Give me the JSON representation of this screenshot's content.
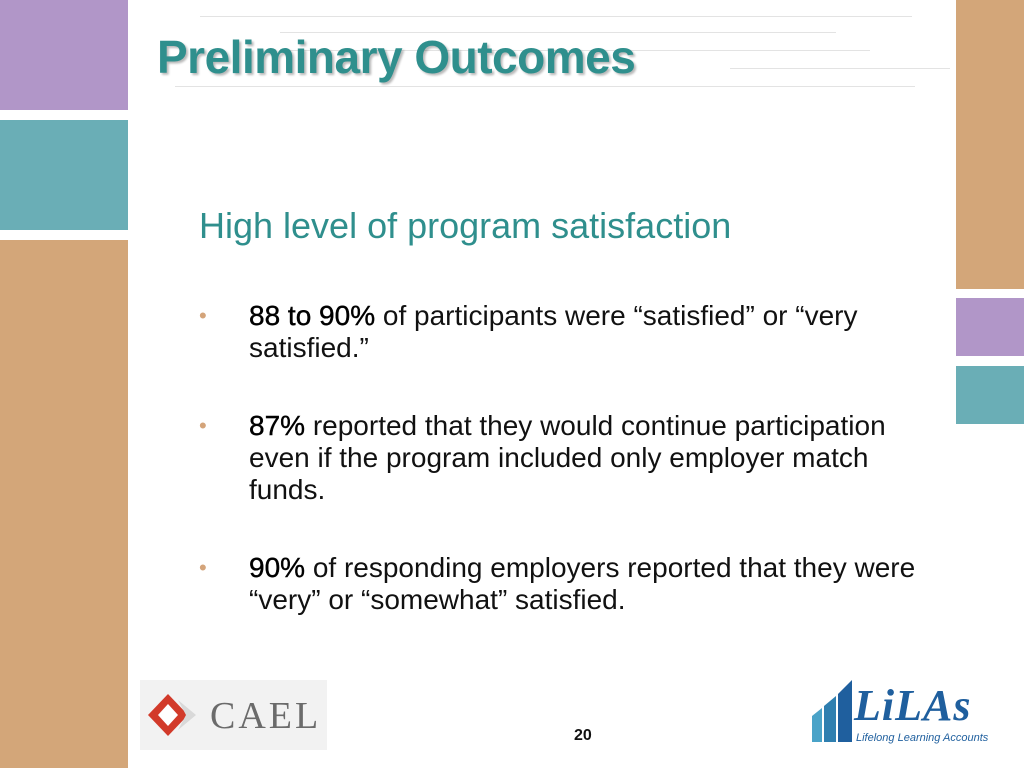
{
  "slide": {
    "title": "Preliminary Outcomes",
    "subtitle": "High level of program satisfaction",
    "bullets": [
      {
        "strong": "88 to 90%",
        "text": " of participants were “satisfied” or “very satisfied.”"
      },
      {
        "strong": "87%",
        "text": " reported that they would continue participation even if the program included only employer match funds."
      },
      {
        "strong": "90%",
        "text": " of responding employers reported that they were “very” or “somewhat” satisfied."
      }
    ],
    "bullet_glyph": "•",
    "page_number": "20"
  },
  "logos": {
    "cael": {
      "text": "CAEL",
      "icon": "cael-diamond-logo"
    },
    "lilas": {
      "text": "LiLAs",
      "tagline": "Lifelong Learning Accounts",
      "icon": "lilas-bars-logo"
    }
  },
  "colors": {
    "teal_title": "#2f8f8d",
    "purple_block": "#b196c8",
    "teal_block": "#6aaeb6",
    "tan_block": "#d3a679",
    "cael_red": "#d23a2a",
    "lilas_blue": "#1f5f9e"
  }
}
